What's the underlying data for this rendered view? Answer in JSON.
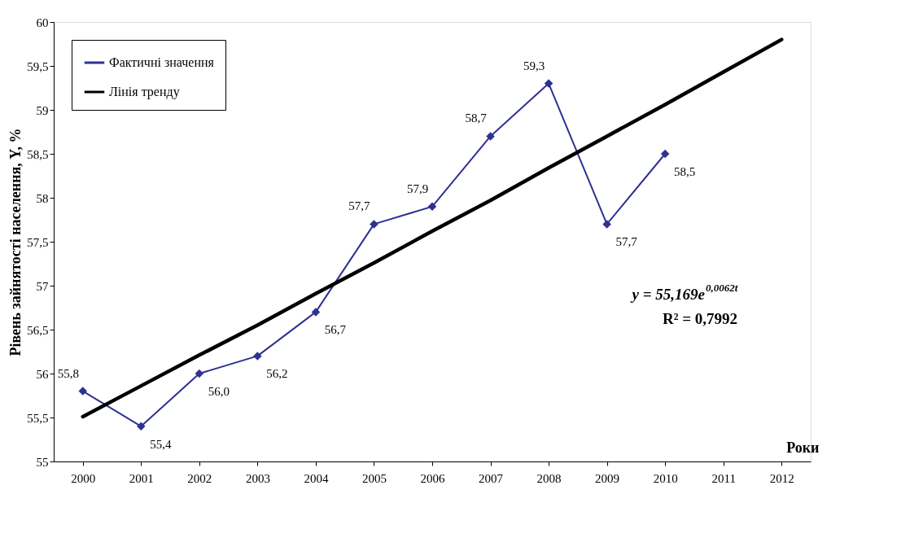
{
  "chart_data": {
    "type": "line",
    "categories": [
      "2000",
      "2001",
      "2002",
      "2003",
      "2004",
      "2005",
      "2006",
      "2007",
      "2008",
      "2009",
      "2010",
      "2011",
      "2012"
    ],
    "series": [
      {
        "name": "Фактичні значення",
        "color": "#2e3192",
        "marker": "diamond",
        "line_style": "solid",
        "values": [
          55.8,
          55.4,
          56.0,
          56.2,
          56.7,
          57.7,
          57.9,
          58.7,
          59.3,
          57.7,
          58.5,
          null,
          null
        ],
        "value_labels": [
          "55,8",
          "55,4",
          "56,0",
          "56,2",
          "56,7",
          "57,7",
          "57,9",
          "58,7",
          "59,3",
          "57,7",
          "58,5",
          null,
          null
        ]
      },
      {
        "name": "Лінія тренду",
        "color": "#000000",
        "marker": "none",
        "line_style": "solid",
        "values": [
          55.51,
          55.86,
          56.21,
          56.55,
          56.91,
          57.26,
          57.62,
          57.97,
          58.34,
          58.7,
          59.06,
          59.43,
          59.8
        ]
      }
    ],
    "xlabel": "Роки",
    "ylabel": "Рівень зайнятості населення, Y, %",
    "ylim": [
      55,
      60
    ],
    "yticks": [
      55,
      {
        "value": 55.5,
        "label": "55,5"
      },
      56,
      {
        "value": 56.5,
        "label": "56,5"
      },
      57,
      {
        "value": 57.5,
        "label": "57,5"
      },
      58,
      {
        "value": 58.5,
        "label": "58,5"
      },
      59,
      {
        "value": 59.5,
        "label": "59,5"
      },
      60
    ],
    "annotations": [
      "y = 55,169e$^{0,0062t}$",
      "R² = 0,7992"
    ],
    "legend": "top left",
    "grid": false
  }
}
